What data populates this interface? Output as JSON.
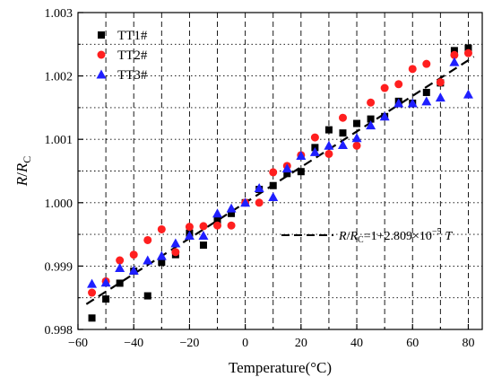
{
  "chart_data": {
    "type": "scatter",
    "title": "",
    "xlabel": "Temperature(°C)",
    "ylabel_main": "R",
    "ylabel_sep": "/",
    "ylabel_base": "R",
    "ylabel_sub": "C",
    "xlim": [
      -60,
      85
    ],
    "ylim": [
      0.998,
      1.003
    ],
    "x_ticks": [
      -60,
      -40,
      -20,
      0,
      20,
      40,
      60,
      80
    ],
    "x_tick_labels": [
      "−60",
      "−40",
      "−20",
      "0",
      "20",
      "40",
      "60",
      "80"
    ],
    "y_ticks": [
      0.998,
      0.999,
      1.0,
      1.001,
      1.002,
      1.003
    ],
    "y_tick_labels": [
      "0.998",
      "0.999",
      "1.000",
      "1.001",
      "1.002",
      "1.003"
    ],
    "grid": true,
    "legend_position": "top-left",
    "series": [
      {
        "name": "TT1#",
        "marker": "square",
        "color": "#000000",
        "points": [
          [
            -55,
            0.99818
          ],
          [
            -50,
            0.99848
          ],
          [
            -45,
            0.99873
          ],
          [
            -40,
            0.99892
          ],
          [
            -35,
            0.99853
          ],
          [
            -30,
            0.99906
          ],
          [
            -25,
            0.99918
          ],
          [
            -20,
            0.99952
          ],
          [
            -15,
            0.99933
          ],
          [
            -10,
            0.99972
          ],
          [
            -5,
            0.99983
          ],
          [
            0,
            1.0
          ],
          [
            5,
            1.00021
          ],
          [
            10,
            1.00027
          ],
          [
            15,
            1.00046
          ],
          [
            20,
            1.00049
          ],
          [
            25,
            1.00087
          ],
          [
            30,
            1.00115
          ],
          [
            35,
            1.0011
          ],
          [
            40,
            1.00125
          ],
          [
            45,
            1.00132
          ],
          [
            50,
            1.00136
          ],
          [
            55,
            1.0016
          ],
          [
            60,
            1.00157
          ],
          [
            65,
            1.00174
          ],
          [
            70,
            1.00189
          ],
          [
            75,
            1.0024
          ],
          [
            80,
            1.00244
          ]
        ]
      },
      {
        "name": "TT2#",
        "marker": "circle",
        "color": "#ff1f1f",
        "points": [
          [
            -55,
            0.99858
          ],
          [
            -50,
            0.99876
          ],
          [
            -45,
            0.99909
          ],
          [
            -40,
            0.99918
          ],
          [
            -35,
            0.99941
          ],
          [
            -30,
            0.99958
          ],
          [
            -25,
            0.99922
          ],
          [
            -20,
            0.99962
          ],
          [
            -15,
            0.99963
          ],
          [
            -10,
            0.99964
          ],
          [
            -5,
            0.99964
          ],
          [
            0,
            1.0
          ],
          [
            5,
            1.0
          ],
          [
            10,
            1.00048
          ],
          [
            15,
            1.00058
          ],
          [
            20,
            1.00075
          ],
          [
            25,
            1.00103
          ],
          [
            30,
            1.00077
          ],
          [
            35,
            1.00134
          ],
          [
            40,
            1.0009
          ],
          [
            45,
            1.00158
          ],
          [
            50,
            1.00181
          ],
          [
            55,
            1.00187
          ],
          [
            60,
            1.00211
          ],
          [
            65,
            1.00219
          ],
          [
            70,
            1.0019
          ],
          [
            75,
            1.00233
          ],
          [
            80,
            1.00236
          ]
        ]
      },
      {
        "name": "TT3#",
        "marker": "triangle",
        "color": "#1f1fff",
        "points": [
          [
            -55,
            0.99872
          ],
          [
            -50,
            0.99874
          ],
          [
            -45,
            0.99897
          ],
          [
            -40,
            0.99893
          ],
          [
            -35,
            0.99909
          ],
          [
            -30,
            0.99916
          ],
          [
            -25,
            0.99936
          ],
          [
            -20,
            0.99948
          ],
          [
            -15,
            0.99948
          ],
          [
            -10,
            0.99983
          ],
          [
            -5,
            0.99991
          ],
          [
            0,
            1.0
          ],
          [
            5,
            1.00023
          ],
          [
            10,
            1.00009
          ],
          [
            15,
            1.00054
          ],
          [
            20,
            1.00074
          ],
          [
            25,
            1.0008
          ],
          [
            30,
            1.0009
          ],
          [
            35,
            1.00091
          ],
          [
            40,
            1.00102
          ],
          [
            45,
            1.00122
          ],
          [
            50,
            1.00136
          ],
          [
            55,
            1.00157
          ],
          [
            60,
            1.00157
          ],
          [
            65,
            1.0016
          ],
          [
            70,
            1.00166
          ],
          [
            75,
            1.00222
          ],
          [
            80,
            1.00171
          ]
        ]
      }
    ],
    "fit_line": {
      "style": "dashed",
      "color": "#000000",
      "intercept": 1.0,
      "slope": 2.809e-05,
      "x_range": [
        -57,
        82
      ],
      "label_lhs_1": "R",
      "label_lhs_sep": "/",
      "label_lhs_2": "R",
      "label_lhs_sub": "C",
      "label_rhs": "=1+2.809×10",
      "label_exp": "−5",
      "label_var": "T"
    }
  }
}
